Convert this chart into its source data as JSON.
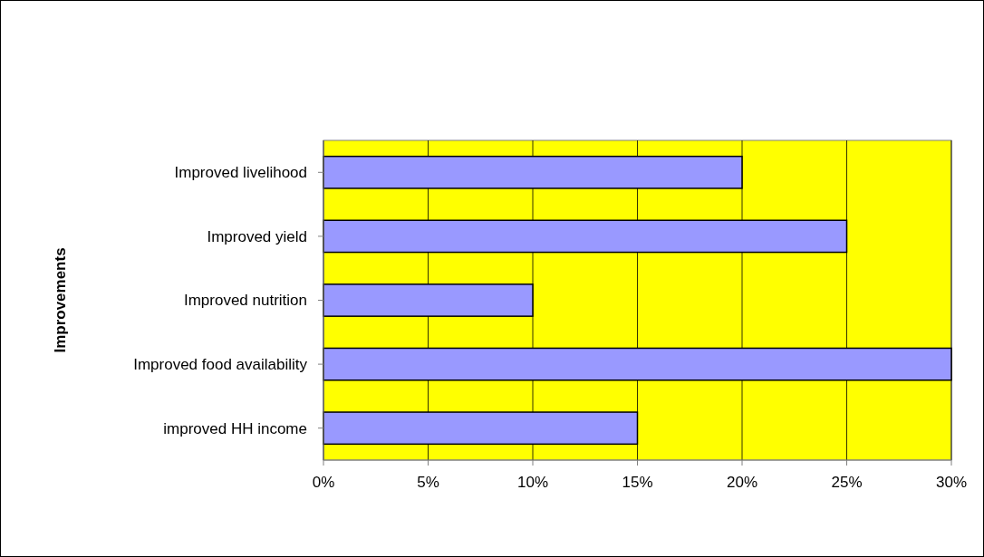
{
  "chart_data": {
    "type": "bar",
    "orientation": "horizontal",
    "ylabel": "Improvements",
    "categories": [
      "Improved livelihood",
      "Improved yield",
      "Improved nutrition",
      "Improved food availability",
      "improved HH income"
    ],
    "values": [
      20,
      25,
      10,
      30,
      15
    ],
    "color": "#9999ff",
    "xlim": [
      0,
      30
    ],
    "xticks": [
      {
        "value": 0,
        "label": "0%"
      },
      {
        "value": 5,
        "label": "5%"
      },
      {
        "value": 10,
        "label": "10%"
      },
      {
        "value": 15,
        "label": "15%"
      },
      {
        "value": 20,
        "label": "20%"
      },
      {
        "value": 25,
        "label": "25%"
      },
      {
        "value": 30,
        "label": "30%"
      }
    ],
    "grid": "x"
  }
}
